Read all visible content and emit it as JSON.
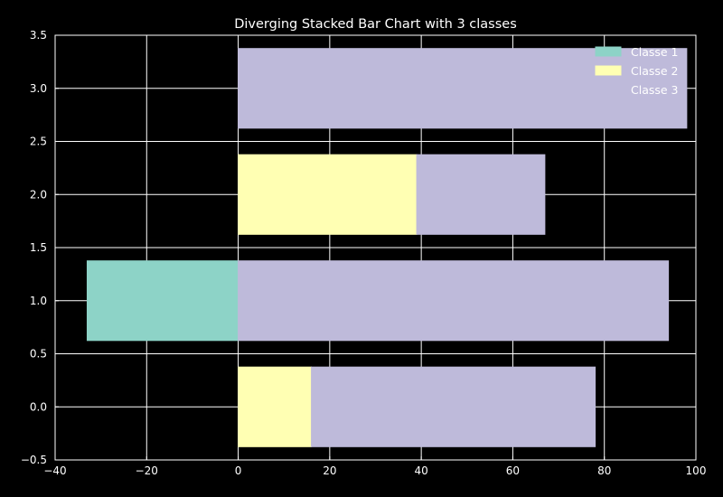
{
  "chart_data": {
    "type": "bar",
    "orientation": "horizontal",
    "stacking": "diverging",
    "title": "Diverging Stacked Bar Chart with 3 classes",
    "xlabel": "",
    "ylabel": "",
    "xlim": [
      -40,
      100
    ],
    "ylim": [
      -0.5,
      3.5
    ],
    "xticks": [
      -40,
      -20,
      0,
      20,
      40,
      60,
      80,
      100
    ],
    "yticks": [
      -0.5,
      0.0,
      0.5,
      1.0,
      1.5,
      2.0,
      2.5,
      3.0,
      3.5
    ],
    "grid": true,
    "legend_position": "top-right",
    "categories": [
      0,
      1,
      2,
      3
    ],
    "bar_height": 0.75,
    "series": [
      {
        "name": "Classe 1",
        "color": "#8dd3c7",
        "values": [
          0,
          -33,
          0,
          0
        ]
      },
      {
        "name": "Classe 2",
        "color": "#ffffb3",
        "values": [
          16,
          0,
          39,
          0
        ]
      },
      {
        "name": "Classe 3",
        "color": "#bebada",
        "values": [
          62,
          94,
          28,
          98
        ]
      }
    ]
  }
}
